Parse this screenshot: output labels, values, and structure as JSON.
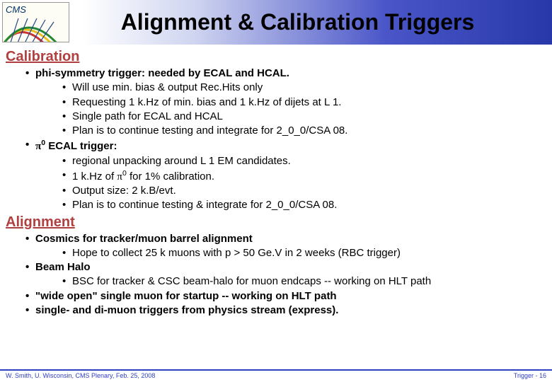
{
  "logo": {
    "label": "CMS"
  },
  "title": "Alignment & Calibration Triggers",
  "sections": [
    {
      "heading": "Calibration",
      "items": [
        {
          "text": "phi-symmetry trigger: needed by ECAL and HCAL.",
          "bold": true,
          "sub": [
            "Will use min. bias & output Rec.Hits only",
            "Requesting 1 k.Hz of min. bias and 1 k.Hz of dijets at L 1.",
            "Single path for ECAL and HCAL",
            "Plan is to continue testing and integrate for 2_0_0/CSA 08."
          ]
        },
        {
          "html": "<span class='pi'>π</span><sup>0</sup> ECAL trigger:",
          "bold": true,
          "sub": [
            "regional unpacking around L 1 EM candidates.",
            {
              "html": "1 k.Hz of <span class='pi'>π</span><sup>0</sup> for 1% calibration."
            },
            "Output size: 2 k.B/evt.",
            "Plan is to continue testing & integrate for 2_0_0/CSA 08."
          ]
        }
      ]
    },
    {
      "heading": "Alignment",
      "items": [
        {
          "text": "Cosmics for tracker/muon barrel alignment",
          "bold": true,
          "sub": [
            "Hope to collect 25 k muons with p > 50 Ge.V in 2 weeks (RBC trigger)"
          ]
        },
        {
          "text": "Beam Halo",
          "bold": true,
          "sub": [
            "BSC for tracker & CSC beam-halo for muon endcaps -- working on HLT path"
          ]
        },
        {
          "text": "\"wide open\" single muon for startup -- working on HLT path",
          "bold": true
        },
        {
          "text": "single- and di-muon triggers from physics stream (express).",
          "bold": true
        }
      ]
    }
  ],
  "footer": {
    "left": "W. Smith, U. Wisconsin,  CMS Plenary, Feb. 25, 2008",
    "right": "Trigger -  16"
  },
  "colors": {
    "heading": "#b04040",
    "footer_rule": "#3040c0"
  }
}
